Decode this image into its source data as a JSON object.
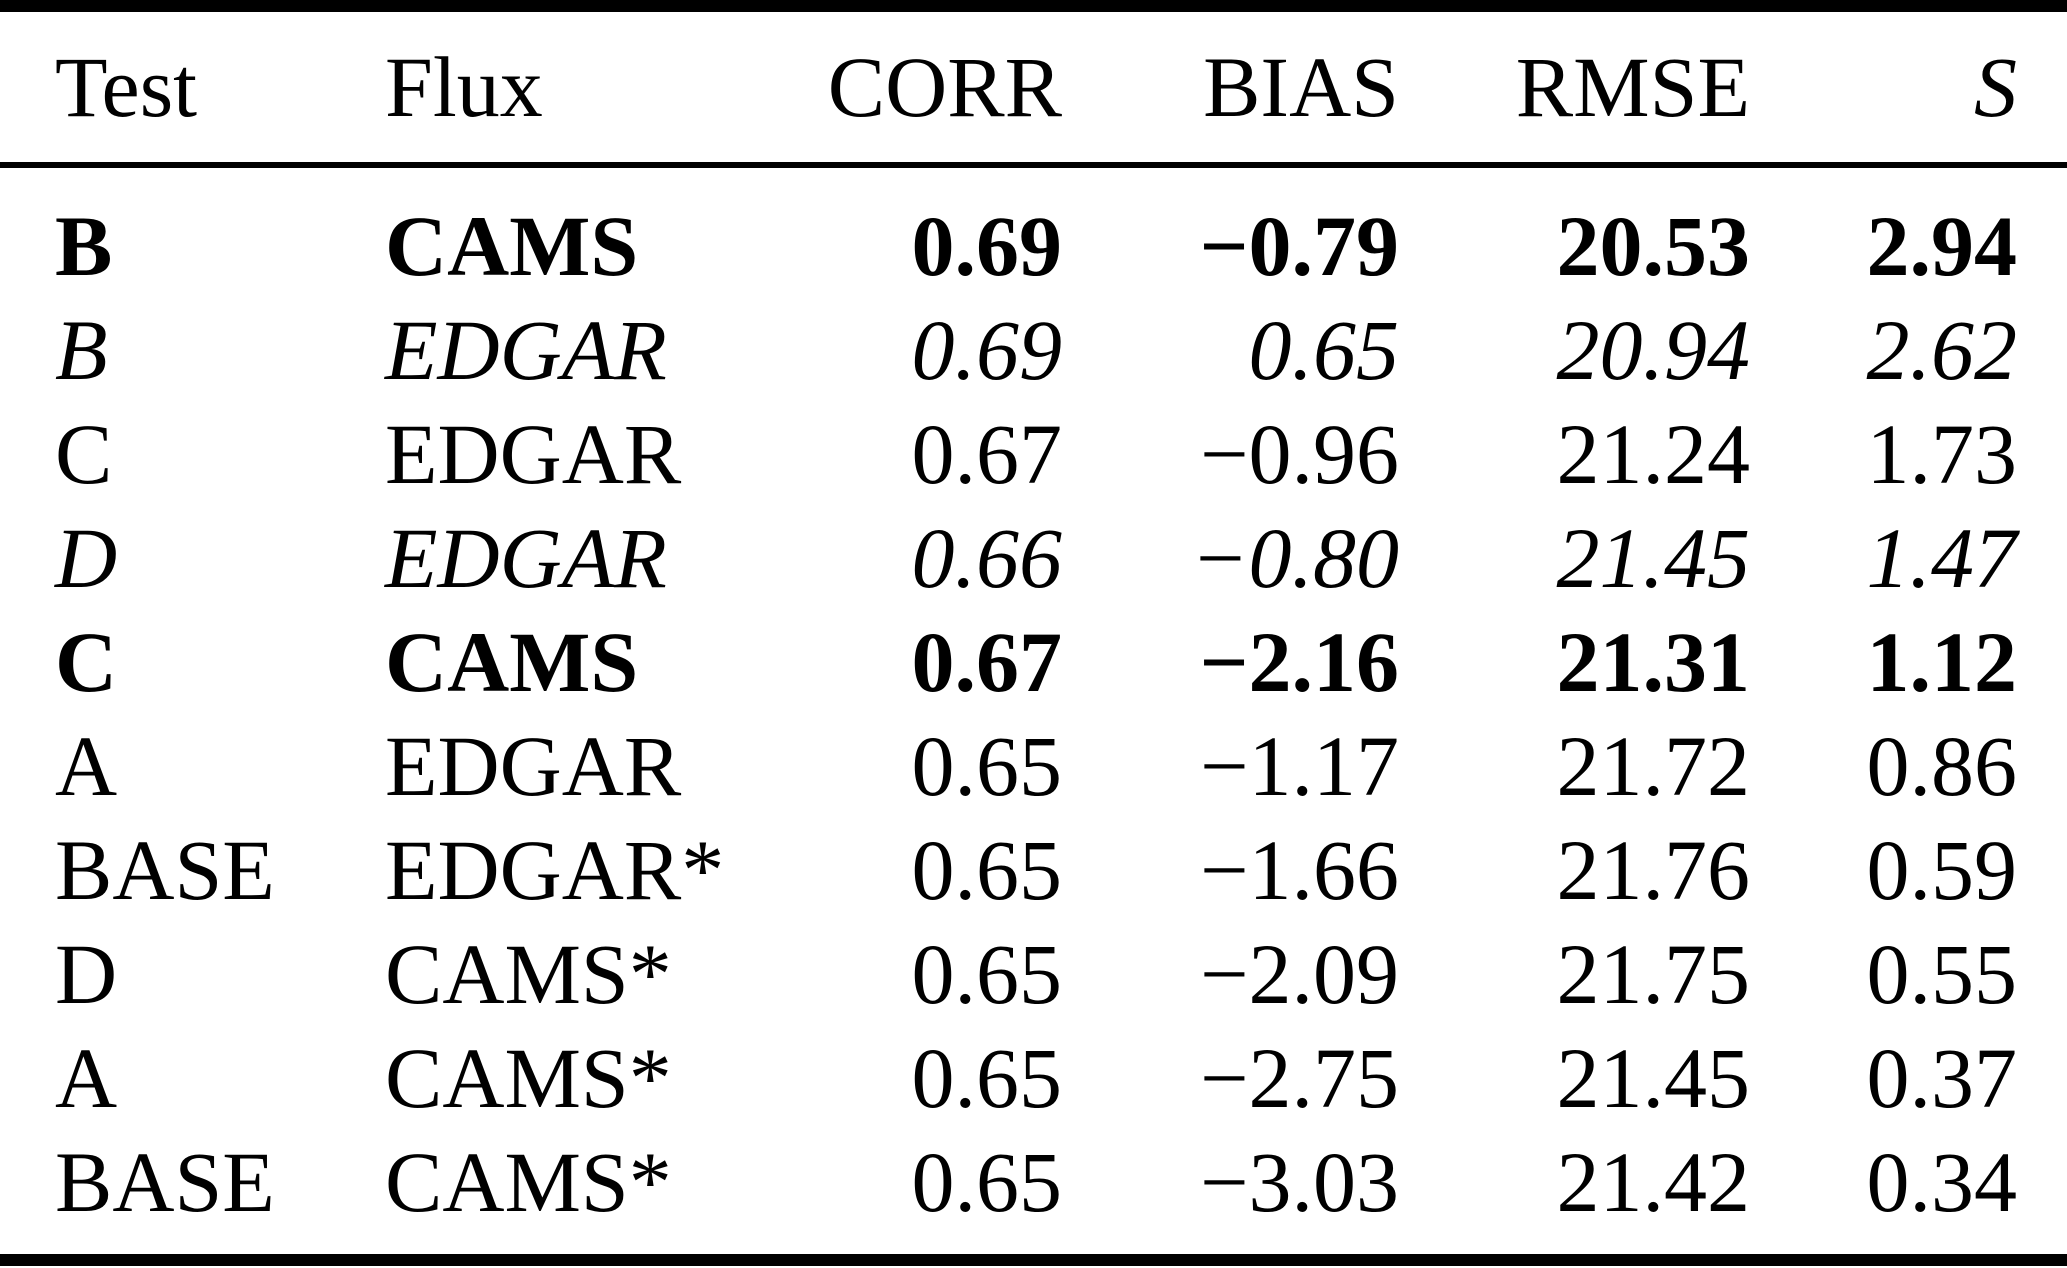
{
  "table": {
    "columns": {
      "test": "Test",
      "flux": "Flux",
      "corr": "CORR",
      "bias": "BIAS",
      "rmse": "RMSE",
      "s": "S"
    },
    "rows": [
      {
        "test": "B",
        "flux": "CAMS",
        "corr": "0.69",
        "bias": "−0.79",
        "rmse": "20.53",
        "s": "2.94",
        "style": "bold"
      },
      {
        "test": "B",
        "flux": "EDGAR",
        "corr": "0.69",
        "bias": "0.65",
        "rmse": "20.94",
        "s": "2.62",
        "style": "italic"
      },
      {
        "test": "C",
        "flux": "EDGAR",
        "corr": "0.67",
        "bias": "−0.96",
        "rmse": "21.24",
        "s": "1.73",
        "style": "regular"
      },
      {
        "test": "D",
        "flux": "EDGAR",
        "corr": "0.66",
        "bias": "−0.80",
        "rmse": "21.45",
        "s": "1.47",
        "style": "italic"
      },
      {
        "test": "C",
        "flux": "CAMS",
        "corr": "0.67",
        "bias": "−2.16",
        "rmse": "21.31",
        "s": "1.12",
        "style": "bold"
      },
      {
        "test": "A",
        "flux": "EDGAR",
        "corr": "0.65",
        "bias": "−1.17",
        "rmse": "21.72",
        "s": "0.86",
        "style": "regular"
      },
      {
        "test": "BASE",
        "flux": "EDGAR*",
        "corr": "0.65",
        "bias": "−1.66",
        "rmse": "21.76",
        "s": "0.59",
        "style": "regular"
      },
      {
        "test": "D",
        "flux": "CAMS*",
        "corr": "0.65",
        "bias": "−2.09",
        "rmse": "21.75",
        "s": "0.55",
        "style": "regular"
      },
      {
        "test": "A",
        "flux": "CAMS*",
        "corr": "0.65",
        "bias": "−2.75",
        "rmse": "21.45",
        "s": "0.37",
        "style": "regular"
      },
      {
        "test": "BASE",
        "flux": "CAMS*",
        "corr": "0.65",
        "bias": "−3.03",
        "rmse": "21.42",
        "s": "0.34",
        "style": "regular"
      }
    ]
  },
  "chart_data": {
    "type": "table",
    "columns": [
      "Test",
      "Flux",
      "CORR",
      "BIAS",
      "RMSE",
      "S"
    ],
    "rows": [
      [
        "B",
        "CAMS",
        0.69,
        -0.79,
        20.53,
        2.94
      ],
      [
        "B",
        "EDGAR",
        0.69,
        0.65,
        20.94,
        2.62
      ],
      [
        "C",
        "EDGAR",
        0.67,
        -0.96,
        21.24,
        1.73
      ],
      [
        "D",
        "EDGAR",
        0.66,
        -0.8,
        21.45,
        1.47
      ],
      [
        "C",
        "CAMS",
        0.67,
        -2.16,
        21.31,
        1.12
      ],
      [
        "A",
        "EDGAR",
        0.65,
        -1.17,
        21.72,
        0.86
      ],
      [
        "BASE",
        "EDGAR*",
        0.65,
        -1.66,
        21.76,
        0.59
      ],
      [
        "D",
        "CAMS*",
        0.65,
        -2.09,
        21.75,
        0.55
      ],
      [
        "A",
        "CAMS*",
        0.65,
        -2.75,
        21.45,
        0.37
      ],
      [
        "BASE",
        "CAMS*",
        0.65,
        -3.03,
        21.42,
        0.34
      ]
    ]
  }
}
